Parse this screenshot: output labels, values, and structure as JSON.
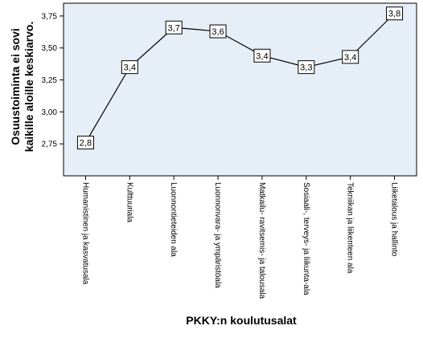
{
  "chart_data": {
    "type": "line",
    "categories": [
      "Humanistinen ja kasvatusala",
      "Kulttuuriala",
      "Luonnontieteiden ala",
      "Luonnonvara- ja ympäristöala",
      "Matkailu- ravitsemis- ja talousala",
      "Sosiaali-, terveys- ja liikunta-ala",
      "Tekniikan ja liikenteen ala",
      "Liiketalous ja hallinto"
    ],
    "values": [
      2.76,
      3.35,
      3.66,
      3.63,
      3.44,
      3.35,
      3.43,
      3.77
    ],
    "data_labels": [
      "2,8",
      "3,4",
      "3,7",
      "3,6",
      "3,4",
      "3,3",
      "3,4",
      "3,8"
    ],
    "ylim": [
      2.5,
      3.85
    ],
    "yticks": [
      2.75,
      3.0,
      3.25,
      3.5,
      3.75
    ],
    "ytick_labels": [
      "2,75",
      "3,00",
      "3,25",
      "3,50",
      "3,75"
    ],
    "ylabel_lines": [
      "Osuustoiminta ei sovi",
      "kaikille aloille keskiarvo."
    ],
    "xlabel": "PKKY:n koulutusalat",
    "grid": false,
    "plot_background": "#e6eef8",
    "line_color": "#000000"
  }
}
